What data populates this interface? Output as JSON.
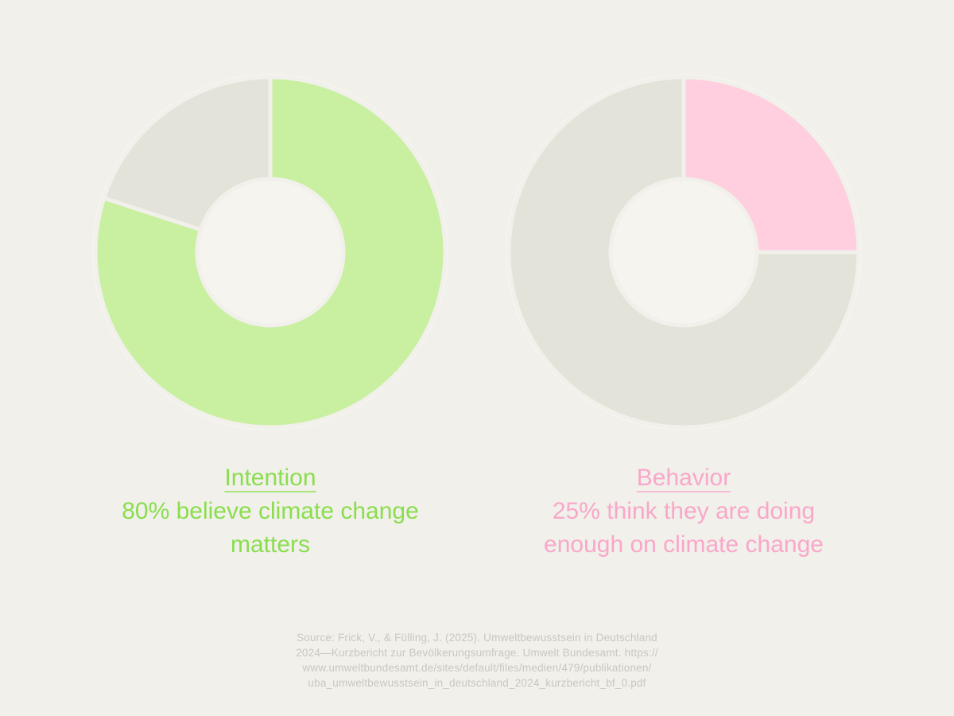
{
  "page": {
    "background_color": "#f1f0ea",
    "halo_color": "#f5f4ee",
    "source_text_color": "#c9c7be"
  },
  "chart_data": [
    {
      "type": "pie",
      "variant": "donut",
      "title": "Intention",
      "caption_lines": [
        "80% believe climate change",
        "matters"
      ],
      "accent_color": "#8ade4e",
      "start_angle_deg": 0,
      "direction": "clockwise",
      "slices": [
        {
          "label": "believe climate change matters",
          "value": 80,
          "color": "#c9f0a0"
        },
        {
          "label": "remainder",
          "value": 20,
          "color": "#e4e3d9"
        }
      ]
    },
    {
      "type": "pie",
      "variant": "donut",
      "title": "Behavior",
      "caption_lines": [
        "25% think they are doing",
        "enough on climate change"
      ],
      "accent_color": "#f9a7ca",
      "start_angle_deg": 0,
      "direction": "clockwise",
      "slices": [
        {
          "label": "think they are doing enough",
          "value": 25,
          "color": "#ffcfe0"
        },
        {
          "label": "remainder",
          "value": 75,
          "color": "#e4e3d9"
        }
      ]
    }
  ],
  "source": {
    "lines": [
      "Source: Frick, V., & Fülling, J. (2025). Umweltbewusstsein in Deutschland",
      "2024—Kurzbericht zur Bevölkerungsumfrage. Umwelt Bundesamt. https://",
      "www.umweltbundesamt.de/sites/default/files/medien/479/publikationen/",
      "uba_umweltbewusstsein_in_deutschland_2024_kurzbericht_bf_0.pdf"
    ]
  }
}
